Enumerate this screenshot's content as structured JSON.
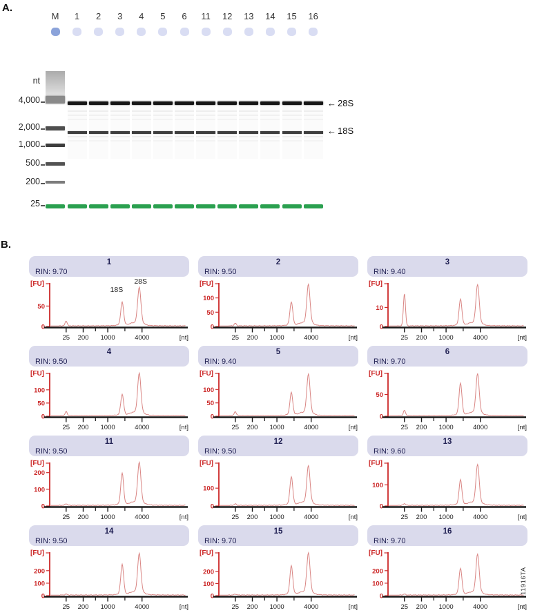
{
  "figure": {
    "panel_a_label": "A.",
    "panel_b_label": "B.",
    "side_code": "11916TA"
  },
  "gel": {
    "unit_label": "nt",
    "lane_labels": [
      "M",
      "1",
      "2",
      "3",
      "4",
      "5",
      "6",
      "11",
      "12",
      "13",
      "14",
      "15",
      "16"
    ],
    "size_markers": [
      "4,000",
      "2,000",
      "1,000",
      "500",
      "200",
      "25"
    ],
    "band_annotations": [
      {
        "arrow": "←",
        "label": "28S"
      },
      {
        "arrow": "←",
        "label": "18S"
      }
    ],
    "well_marker_color": "#8ba3da",
    "well_sample_color": "#d9ddf3",
    "lower_marker_color": "#2aa04f"
  },
  "chart_data": {
    "type": "line",
    "y_axis_label": "[FU]",
    "x_axis_label": "[nt]",
    "x_tick_labels": [
      "25",
      "200",
      "1000",
      "4000"
    ],
    "rin_prefix": "RIN:",
    "legend": "none",
    "grid": "off",
    "colors": {
      "axis_red": "#cc2929",
      "trace": "#d98583",
      "axis_black": "#1a1a1a",
      "header_bg": "#dadaec",
      "header_text": "#1f1f52"
    },
    "panels": [
      {
        "title": "1",
        "rin": "9.70",
        "y_ticks": [
          0,
          50
        ],
        "y_axis_max": 98,
        "peaks_fu": {
          "marker_25nt": 12,
          "rna_18s": 54,
          "rna_28s": 85
        },
        "annotations": [
          "18S",
          "28S"
        ]
      },
      {
        "title": "2",
        "rin": "9.50",
        "y_ticks": [
          0,
          50,
          100
        ],
        "y_axis_max": 140,
        "peaks_fu": {
          "marker_25nt": 9,
          "rna_18s": 78,
          "rna_28s": 130
        }
      },
      {
        "title": "3",
        "rin": "9.40",
        "y_ticks": [
          0,
          10
        ],
        "y_axis_max": 21,
        "peaks_fu": {
          "marker_25nt": 17,
          "rna_18s": 13,
          "rna_28s": 19.5
        }
      },
      {
        "title": "4",
        "rin": "9.50",
        "y_ticks": [
          0,
          50,
          100
        ],
        "y_axis_max": 152,
        "peaks_fu": {
          "marker_25nt": 15,
          "rna_18s": 75,
          "rna_28s": 145
        }
      },
      {
        "title": "5",
        "rin": "9.40",
        "y_ticks": [
          0,
          50,
          100
        ],
        "y_axis_max": 150,
        "peaks_fu": {
          "marker_25nt": 15,
          "rna_18s": 80,
          "rna_28s": 140
        }
      },
      {
        "title": "6",
        "rin": "9.70",
        "y_ticks": [
          0,
          50
        ],
        "y_axis_max": 92,
        "peaks_fu": {
          "marker_25nt": 12,
          "rna_18s": 70,
          "rna_28s": 86
        }
      },
      {
        "title": "11",
        "rin": "9.50",
        "y_ticks": [
          0,
          100,
          200
        ],
        "y_axis_max": 240,
        "peaks_fu": {
          "marker_25nt": 10,
          "rna_18s": 180,
          "rna_28s": 232
        }
      },
      {
        "title": "12",
        "rin": "9.50",
        "y_ticks": [
          0,
          100
        ],
        "y_axis_max": 225,
        "peaks_fu": {
          "marker_25nt": 8,
          "rna_18s": 150,
          "rna_28s": 200
        }
      },
      {
        "title": "13",
        "rin": "9.60",
        "y_ticks": [
          0,
          100
        ],
        "y_axis_max": 190,
        "peaks_fu": {
          "marker_25nt": 8,
          "rna_18s": 112,
          "rna_28s": 175
        }
      },
      {
        "title": "14",
        "rin": "9.50",
        "y_ticks": [
          0,
          100,
          200
        ],
        "y_axis_max": 320,
        "peaks_fu": {
          "marker_25nt": 8,
          "rna_18s": 230,
          "rna_28s": 298
        }
      },
      {
        "title": "15",
        "rin": "9.70",
        "y_ticks": [
          0,
          100,
          200
        ],
        "y_axis_max": 330,
        "peaks_fu": {
          "marker_25nt": 8,
          "rna_18s": 225,
          "rna_28s": 312
        }
      },
      {
        "title": "16",
        "rin": "9.70",
        "y_ticks": [
          0,
          100,
          200
        ],
        "y_axis_max": 320,
        "peaks_fu": {
          "marker_25nt": 8,
          "rna_18s": 200,
          "rna_28s": 292
        }
      }
    ]
  }
}
